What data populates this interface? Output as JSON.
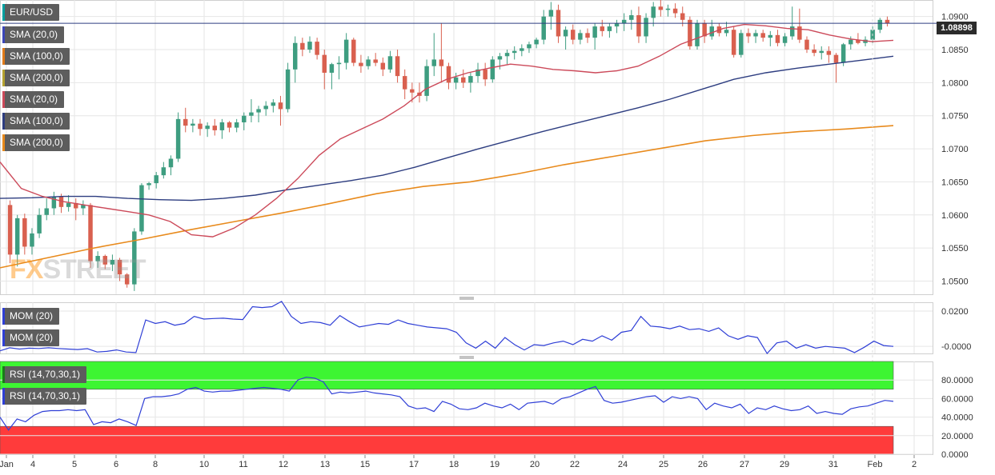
{
  "chart_data": [
    {
      "type": "candlestick",
      "symbol": "EUR/USD",
      "last_price": "1.08898",
      "y_ticks": [
        "1.0900",
        "1.0850",
        "1.0800",
        "1.0750",
        "1.0700",
        "1.0650",
        "1.0600",
        "1.0550",
        "1.0500"
      ],
      "ylim": [
        1.048,
        1.0925
      ],
      "x_ticks": [
        "Jan",
        "4",
        "5",
        "6",
        "8",
        "10",
        "11",
        "12",
        "13",
        "15",
        "17",
        "18",
        "19",
        "20",
        "22",
        "24",
        "25",
        "26",
        "27",
        "29",
        "31",
        "Feb",
        "2"
      ],
      "grid": true,
      "indicators": [
        {
          "name": "SMA (20,0)",
          "color": "#3b46b8"
        },
        {
          "name": "SMA (100,0)",
          "color": "#e07b1a"
        },
        {
          "name": "SMA (200,0)",
          "color": "#b5a230"
        },
        {
          "name": "SMA (20,0)",
          "color": "#cc4a5a"
        },
        {
          "name": "SMA (100,0)",
          "color": "#2d3d80"
        },
        {
          "name": "SMA (200,0)",
          "color": "#e88a1c"
        }
      ],
      "ohlc_points": [
        [
          1.0615,
          1.0622,
          1.0527,
          1.054
        ],
        [
          1.054,
          1.06,
          1.0522,
          1.0595
        ],
        [
          1.0595,
          1.0602,
          1.054,
          1.0552
        ],
        [
          1.0552,
          1.058,
          1.054,
          1.0572
        ],
        [
          1.0572,
          1.061,
          1.0565,
          1.06
        ],
        [
          1.06,
          1.0625,
          1.0592,
          1.061
        ],
        [
          1.061,
          1.0635,
          1.06,
          1.0628
        ],
        [
          1.0628,
          1.0632,
          1.0603,
          1.0612
        ],
        [
          1.0612,
          1.063,
          1.0605,
          1.0618
        ],
        [
          1.0618,
          1.0625,
          1.0592,
          1.061
        ],
        [
          1.061,
          1.0622,
          1.06,
          1.0615
        ],
        [
          1.0615,
          1.0618,
          1.052,
          1.053
        ],
        [
          1.053,
          1.0545,
          1.052,
          1.0538
        ],
        [
          1.0538,
          1.054,
          1.0518,
          1.0525
        ],
        [
          1.0525,
          1.054,
          1.0515,
          1.0532
        ],
        [
          1.0532,
          1.0535,
          1.05,
          1.051
        ],
        [
          1.051,
          1.0512,
          1.049,
          1.0495
        ],
        [
          1.0495,
          1.058,
          1.0485,
          1.0575
        ],
        [
          1.0575,
          1.0648,
          1.057,
          1.0645
        ],
        [
          1.0645,
          1.065,
          1.0638,
          1.0648
        ],
        [
          1.0648,
          1.0665,
          1.064,
          1.066
        ],
        [
          1.066,
          1.068,
          1.0655,
          1.0672
        ],
        [
          1.0672,
          1.069,
          1.066,
          1.0685
        ],
        [
          1.0685,
          1.0755,
          1.068,
          1.0745
        ],
        [
          1.0745,
          1.0762,
          1.0725,
          1.0735
        ],
        [
          1.0735,
          1.0745,
          1.0725,
          1.0738
        ],
        [
          1.0738,
          1.0745,
          1.072,
          1.073
        ],
        [
          1.073,
          1.074,
          1.0718,
          1.0735
        ],
        [
          1.0735,
          1.0745,
          1.072,
          1.0728
        ],
        [
          1.0728,
          1.0745,
          1.0715,
          1.074
        ],
        [
          1.074,
          1.0742,
          1.0725,
          1.0732
        ],
        [
          1.0732,
          1.0745,
          1.0725,
          1.074
        ],
        [
          1.074,
          1.0755,
          1.0728,
          1.075
        ],
        [
          1.075,
          1.0775,
          1.074,
          1.0755
        ],
        [
          1.0755,
          1.0765,
          1.074,
          1.076
        ],
        [
          1.076,
          1.0772,
          1.075,
          1.0765
        ],
        [
          1.0765,
          1.0775,
          1.0755,
          1.077
        ],
        [
          1.077,
          1.078,
          1.0735,
          1.076
        ],
        [
          1.076,
          1.083,
          1.0755,
          1.082
        ],
        [
          1.082,
          1.087,
          1.08,
          1.086
        ],
        [
          1.086,
          1.0868,
          1.084,
          1.085
        ],
        [
          1.085,
          1.087,
          1.0845,
          1.0862
        ],
        [
          1.0862,
          1.0868,
          1.0835,
          1.0842
        ],
        [
          1.0842,
          1.085,
          1.079,
          1.0815
        ],
        [
          1.0815,
          1.083,
          1.079,
          1.0828
        ],
        [
          1.0828,
          1.084,
          1.0805,
          1.083
        ],
        [
          1.083,
          1.0875,
          1.082,
          1.0865
        ],
        [
          1.0865,
          1.0868,
          1.0825,
          1.083
        ],
        [
          1.083,
          1.0842,
          1.0815,
          1.0825
        ],
        [
          1.0825,
          1.084,
          1.082,
          1.0835
        ],
        [
          1.0835,
          1.0845,
          1.0825,
          1.083
        ],
        [
          1.083,
          1.0838,
          1.081,
          1.082
        ],
        [
          1.082,
          1.0848,
          1.0815,
          1.084
        ],
        [
          1.084,
          1.085,
          1.08,
          1.081
        ],
        [
          1.081,
          1.082,
          1.0775,
          1.079
        ],
        [
          1.079,
          1.08,
          1.077,
          1.0785
        ],
        [
          1.0785,
          1.08,
          1.077,
          1.078
        ],
        [
          1.078,
          1.0835,
          1.0772,
          1.0825
        ],
        [
          1.0825,
          1.0875,
          1.081,
          1.0835
        ],
        [
          1.0835,
          1.089,
          1.08,
          1.0825
        ],
        [
          1.0825,
          1.083,
          1.079,
          1.08
        ],
        [
          1.08,
          1.0815,
          1.079,
          1.0808
        ],
        [
          1.0808,
          1.082,
          1.0792,
          1.08
        ],
        [
          1.08,
          1.0815,
          1.0785,
          1.081
        ],
        [
          1.081,
          1.083,
          1.08,
          1.082
        ],
        [
          1.082,
          1.083,
          1.0795,
          1.0805
        ],
        [
          1.0805,
          1.084,
          1.08,
          1.0835
        ],
        [
          1.0835,
          1.0845,
          1.082,
          1.084
        ],
        [
          1.084,
          1.085,
          1.0828,
          1.0845
        ],
        [
          1.0845,
          1.0855,
          1.0835,
          1.0848
        ],
        [
          1.0848,
          1.0858,
          1.084,
          1.0852
        ],
        [
          1.0852,
          1.0862,
          1.0845,
          1.0858
        ],
        [
          1.0858,
          1.0868,
          1.0852,
          1.0865
        ],
        [
          1.0865,
          1.091,
          1.0858,
          1.09
        ],
        [
          1.09,
          1.0922,
          1.088,
          1.091
        ],
        [
          1.091,
          1.0918,
          1.086,
          1.087
        ],
        [
          1.087,
          1.0885,
          1.085,
          1.088
        ],
        [
          1.088,
          1.0888,
          1.0858,
          1.0865
        ],
        [
          1.0865,
          1.088,
          1.0858,
          1.0875
        ],
        [
          1.0875,
          1.0882,
          1.086,
          1.0868
        ],
        [
          1.0868,
          1.089,
          1.085,
          1.0885
        ],
        [
          1.0885,
          1.0895,
          1.087,
          1.0878
        ],
        [
          1.0878,
          1.089,
          1.0868,
          1.0885
        ],
        [
          1.0885,
          1.0895,
          1.0875,
          1.089
        ],
        [
          1.089,
          1.0905,
          1.0878,
          1.0895
        ],
        [
          1.0895,
          1.091,
          1.088,
          1.0902
        ],
        [
          1.0902,
          1.0915,
          1.086,
          1.087
        ],
        [
          1.087,
          1.0905,
          1.086,
          1.0898
        ],
        [
          1.0898,
          1.0922,
          1.0885,
          1.0915
        ],
        [
          1.0915,
          1.0925,
          1.09,
          1.091
        ],
        [
          1.091,
          1.0918,
          1.09,
          1.0912
        ],
        [
          1.0912,
          1.092,
          1.0898,
          1.0905
        ],
        [
          1.0905,
          1.0915,
          1.0885,
          1.0895
        ],
        [
          1.0895,
          1.09,
          1.085,
          1.0855
        ],
        [
          1.0855,
          1.0895,
          1.085,
          1.089
        ],
        [
          1.089,
          1.0895,
          1.086,
          1.087
        ],
        [
          1.087,
          1.0895,
          1.0865,
          1.0885
        ],
        [
          1.0885,
          1.089,
          1.087,
          1.0875
        ],
        [
          1.0875,
          1.0892,
          1.087,
          1.088
        ],
        [
          1.088,
          1.0885,
          1.0838,
          1.0842
        ],
        [
          1.0842,
          1.088,
          1.0838,
          1.0875
        ],
        [
          1.0875,
          1.0882,
          1.086,
          1.087
        ],
        [
          1.087,
          1.088,
          1.086,
          1.0875
        ],
        [
          1.0875,
          1.088,
          1.0862,
          1.0868
        ],
        [
          1.0868,
          1.0878,
          1.0855,
          1.0872
        ],
        [
          1.0872,
          1.088,
          1.0855,
          1.086
        ],
        [
          1.086,
          1.0875,
          1.0855,
          1.087
        ],
        [
          1.087,
          1.0915,
          1.0865,
          1.0885
        ],
        [
          1.0885,
          1.0912,
          1.086,
          1.0865
        ],
        [
          1.0865,
          1.087,
          1.0845,
          1.085
        ],
        [
          1.085,
          1.0858,
          1.084,
          1.0845
        ],
        [
          1.0845,
          1.0855,
          1.0835,
          1.0848
        ],
        [
          1.0848,
          1.0855,
          1.083,
          1.0842
        ],
        [
          1.0842,
          1.0845,
          1.08,
          1.083
        ],
        [
          1.083,
          1.086,
          1.0825,
          1.0858
        ],
        [
          1.0858,
          1.087,
          1.085,
          1.0865
        ],
        [
          1.0865,
          1.0875,
          1.0858,
          1.086
        ],
        [
          1.086,
          1.087,
          1.0855,
          1.0865
        ],
        [
          1.0865,
          1.0885,
          1.086,
          1.088
        ],
        [
          1.088,
          1.0898,
          1.0875,
          1.0895
        ],
        [
          1.0895,
          1.09,
          1.0885,
          1.089
        ]
      ],
      "sma20": [
        1.068,
        1.064,
        1.0628,
        1.062,
        1.0615,
        1.061,
        1.0605,
        1.06,
        1.059,
        1.057,
        1.0567,
        1.058,
        1.06,
        1.0625,
        1.0655,
        1.069,
        1.0715,
        1.073,
        1.0745,
        1.0765,
        1.079,
        1.0805,
        1.0815,
        1.0822,
        1.0828,
        1.0825,
        1.082,
        1.0818,
        1.0815,
        1.0818,
        1.0825,
        1.084,
        1.0858,
        1.087,
        1.0882,
        1.0888,
        1.0886,
        1.0882,
        1.088,
        1.0872,
        1.0866,
        1.0862,
        1.0864
      ],
      "sma100": [
        1.0625,
        1.0626,
        1.0628,
        1.0628,
        1.0625,
        1.0623,
        1.0622,
        1.0625,
        1.063,
        1.0638,
        1.0645,
        1.0652,
        1.066,
        1.0672,
        1.0686,
        1.07,
        1.0713,
        1.0726,
        1.0738,
        1.075,
        1.0762,
        1.0775,
        1.079,
        1.0805,
        1.0815,
        1.0822,
        1.0828,
        1.0834,
        1.084
      ],
      "sma200": [
        1.052,
        1.0535,
        1.055,
        1.0563,
        1.0577,
        1.059,
        1.0603,
        1.0617,
        1.0632,
        1.0643,
        1.065,
        1.0662,
        1.0676,
        1.0688,
        1.07,
        1.0712,
        1.072,
        1.0726,
        1.073,
        1.0735
      ]
    },
    {
      "type": "line",
      "name": "MOM (20)",
      "y_ticks": [
        "0.0200",
        "-0.0000"
      ],
      "ylim": [
        -0.004,
        0.025
      ],
      "values": [
        -0.0025,
        -0.0008,
        -0.0015,
        -0.001,
        -0.0012,
        -0.0008,
        -0.0012,
        -0.0015,
        -0.0018,
        -0.0013,
        -0.0032,
        -0.0028,
        -0.002,
        -0.0032,
        -0.0035,
        0.015,
        0.013,
        0.014,
        0.012,
        0.013,
        0.017,
        0.0155,
        0.0158,
        0.016,
        0.0155,
        0.0152,
        0.0225,
        0.022,
        0.0225,
        0.0255,
        0.017,
        0.013,
        0.014,
        0.0135,
        0.012,
        0.0175,
        0.014,
        0.011,
        0.012,
        0.013,
        0.0125,
        0.015,
        0.013,
        0.012,
        0.011,
        0.0105,
        0.01,
        0.008,
        0.002,
        -0.001,
        0.003,
        -0.001,
        0.005,
        0.001,
        -0.002,
        0.001,
        0.0005,
        0.002,
        0.003,
        0.001,
        0.004,
        0.003,
        0.006,
        0.0035,
        0.008,
        0.009,
        0.017,
        0.0115,
        0.011,
        0.01,
        0.0115,
        0.0095,
        0.01,
        0.0085,
        0.0105,
        0.006,
        0.004,
        0.006,
        0.005,
        -0.004,
        0.002,
        0.003,
        -0.001,
        0.001,
        -0.001,
        0.0,
        -0.0005,
        -0.001,
        -0.0035,
        -0.0005,
        0.003,
        0.0005,
        0.0
      ]
    },
    {
      "type": "line",
      "name": "RSI (14,70,30,1)",
      "y_ticks": [
        "80.0000",
        "60.0000",
        "40.0000",
        "20.0000",
        "0.0000"
      ],
      "ylim": [
        0,
        100
      ],
      "overbought": 70,
      "oversold": 30,
      "values": [
        40,
        26,
        38,
        35,
        42,
        46,
        47,
        47,
        48,
        47,
        48,
        32,
        35,
        34,
        38,
        35,
        31,
        60,
        62,
        62,
        63,
        65,
        70,
        72,
        68,
        67,
        68,
        68,
        69,
        70,
        71,
        72,
        71,
        70,
        68,
        80,
        83,
        82,
        78,
        65,
        67,
        66,
        67,
        68,
        66,
        65,
        64,
        62,
        52,
        49,
        50,
        46,
        57,
        54,
        49,
        48,
        50,
        55,
        52,
        50,
        54,
        48,
        55,
        56,
        57,
        54,
        60,
        62,
        66,
        70,
        73,
        58,
        55,
        56,
        58,
        60,
        62,
        63,
        56,
        62,
        60,
        62,
        60,
        48,
        55,
        52,
        50,
        54,
        44,
        50,
        48,
        52,
        49,
        47,
        48,
        52,
        44,
        46,
        44,
        43,
        49,
        51,
        52,
        55,
        58,
        57
      ],
      "overbought_color": "#3df532",
      "oversold_color": "#ff3b3b"
    }
  ],
  "legends": {
    "main": [
      "EUR/USD",
      "SMA (20,0)",
      "SMA (100,0)",
      "SMA (200,0)",
      "SMA (20,0)",
      "SMA (100,0)",
      "SMA (200,0)"
    ],
    "mom": [
      "MOM (20)",
      "MOM (20)"
    ],
    "rsi": [
      "RSI (14,70,30,1)",
      "RSI (14,70,30,1)"
    ]
  },
  "watermark": {
    "x": "FX",
    "rest": "STREET"
  },
  "colors": {
    "bull": "#3e9d80",
    "bear": "#d9604f",
    "grid": "#e6e6e6",
    "axis": "#cfcfcf",
    "mom_line": "#2f3fd6",
    "rsi_line": "#2f3fd6",
    "sma20_line": "#cc4a5a",
    "sma100_line": "#2d3d80",
    "sma200_line": "#e88a1c"
  }
}
